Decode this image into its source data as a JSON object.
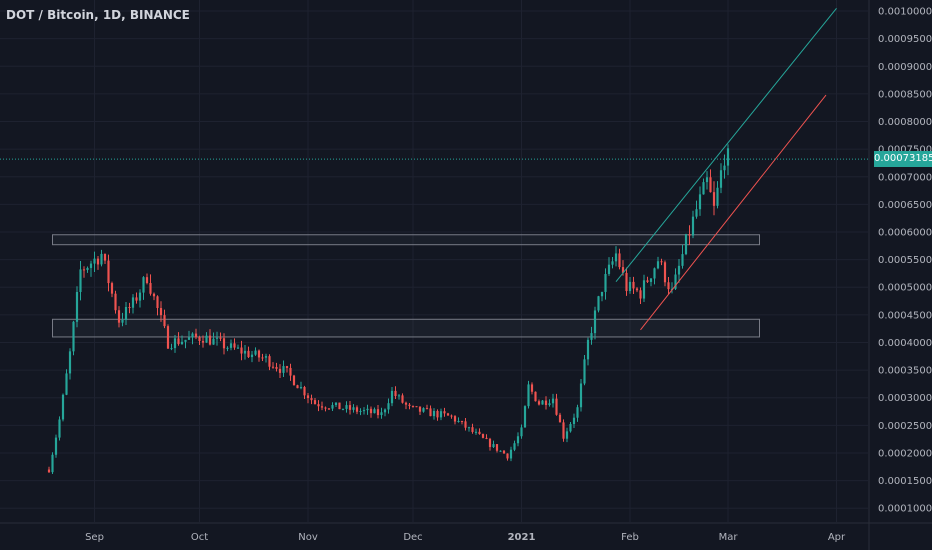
{
  "header": {
    "title": "DOT / Bitcoin, 1D, BINANCE"
  },
  "price_tag": "0.00073185",
  "colors": {
    "background": "#131722",
    "grid": "#1e2230",
    "up": "#26a69a",
    "down": "#ef5350",
    "text": "#b2b5be",
    "box": "#787b86",
    "upper_channel": "#26a69a",
    "lower_channel": "#ef5350"
  },
  "chart_data": {
    "type": "candlestick",
    "x_ticks": [
      "Sep",
      "Oct",
      "Nov",
      "Dec",
      "2021",
      "Feb",
      "Mar",
      "Apr"
    ],
    "x_tick_dates": [
      "2020-09-01",
      "2020-10-01",
      "2020-11-01",
      "2020-12-01",
      "2021-01-01",
      "2021-02-01",
      "2021-03-01",
      "2021-04-01"
    ],
    "y_ticks": [
      "0.00100000",
      "0.00095000",
      "0.00090000",
      "0.00085000",
      "0.00080000",
      "0.00075000",
      "0.00070000",
      "0.00065000",
      "0.00060000",
      "0.00055000",
      "0.00050000",
      "0.00045000",
      "0.00040000",
      "0.00035000",
      "0.00030000",
      "0.00025000",
      "0.00020000",
      "0.00015000",
      "0.00010000"
    ],
    "ylim": [
      7.5e-05,
      0.00102
    ],
    "xlim": [
      "2020-08-05",
      "2021-04-10"
    ],
    "last_price": 0.00073185,
    "zones": [
      {
        "from": "2020-08-20",
        "to": "2021-03-10",
        "low": 0.000577,
        "high": 0.000595
      },
      {
        "from": "2020-08-20",
        "to": "2021-03-10",
        "low": 0.00041,
        "high": 0.000442
      }
    ],
    "channel_lines": [
      {
        "name": "upper",
        "start": [
          "2021-01-28",
          0.00051
        ],
        "end": [
          "2021-04-01",
          0.001005
        ]
      },
      {
        "name": "lower",
        "start": [
          "2021-02-04",
          0.000423
        ],
        "end": [
          "2021-03-29",
          0.000848
        ]
      }
    ],
    "anchors": [
      [
        "2020-08-19",
        0.00017
      ],
      [
        "2020-08-22",
        0.00026
      ],
      [
        "2020-08-25",
        0.00038
      ],
      [
        "2020-08-28",
        0.00053
      ],
      [
        "2020-09-03",
        0.00056
      ],
      [
        "2020-09-08",
        0.00044
      ],
      [
        "2020-09-12",
        0.00047
      ],
      [
        "2020-09-16",
        0.00052
      ],
      [
        "2020-09-22",
        0.0004
      ],
      [
        "2020-10-02",
        0.00041
      ],
      [
        "2020-10-10",
        0.00039
      ],
      [
        "2020-10-20",
        0.00037
      ],
      [
        "2020-10-26",
        0.000345
      ],
      [
        "2020-11-03",
        0.00029
      ],
      [
        "2020-11-12",
        0.00028
      ],
      [
        "2020-11-22",
        0.00027
      ],
      [
        "2020-11-25",
        0.00031
      ],
      [
        "2020-11-30",
        0.00028
      ],
      [
        "2020-12-12",
        0.000265
      ],
      [
        "2020-12-22",
        0.00022
      ],
      [
        "2020-12-28",
        0.000195
      ],
      [
        "2021-01-01",
        0.00024
      ],
      [
        "2021-01-03",
        0.00032
      ],
      [
        "2021-01-06",
        0.00029
      ],
      [
        "2021-01-10",
        0.0003
      ],
      [
        "2021-01-13",
        0.00023
      ],
      [
        "2021-01-17",
        0.00028
      ],
      [
        "2021-01-20",
        0.0004
      ],
      [
        "2021-01-24",
        0.0005
      ],
      [
        "2021-01-28",
        0.00056
      ],
      [
        "2021-01-31",
        0.0005
      ],
      [
        "2021-02-04",
        0.00049
      ],
      [
        "2021-02-09",
        0.00055
      ],
      [
        "2021-02-13",
        0.00049
      ],
      [
        "2021-02-17",
        0.00058
      ],
      [
        "2021-02-20",
        0.00064
      ],
      [
        "2021-02-23",
        0.00069
      ],
      [
        "2021-02-25",
        0.00064
      ],
      [
        "2021-02-28",
        0.00074
      ],
      [
        "2021-03-01",
        0.000732
      ]
    ]
  }
}
